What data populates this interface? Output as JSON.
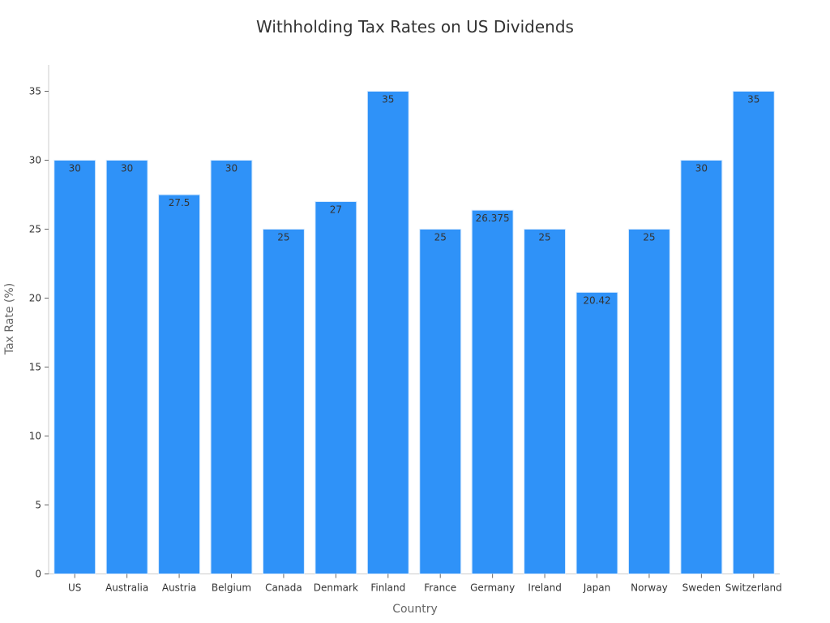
{
  "chart_data": {
    "type": "bar",
    "title": "Withholding Tax Rates on US Dividends",
    "xlabel": "Country",
    "ylabel": "Tax Rate (%)",
    "categories": [
      "US",
      "Australia",
      "Austria",
      "Belgium",
      "Canada",
      "Denmark",
      "Finland",
      "France",
      "Germany",
      "Ireland",
      "Japan",
      "Norway",
      "Sweden",
      "Switzerland"
    ],
    "values": [
      30,
      30,
      27.5,
      30,
      25,
      27,
      35,
      25,
      26.375,
      25,
      20.42,
      25,
      30,
      35
    ],
    "data_labels": [
      "30",
      "30",
      "27.5",
      "30",
      "25",
      "27",
      "35",
      "25",
      "26.375",
      "25",
      "20.42",
      "25",
      "30",
      "35"
    ],
    "ylim": [
      0,
      37
    ],
    "yticks": [
      0,
      5,
      10,
      15,
      20,
      25,
      30,
      35
    ],
    "grid": false,
    "legend": null,
    "bar_color": "#2f92f8"
  }
}
